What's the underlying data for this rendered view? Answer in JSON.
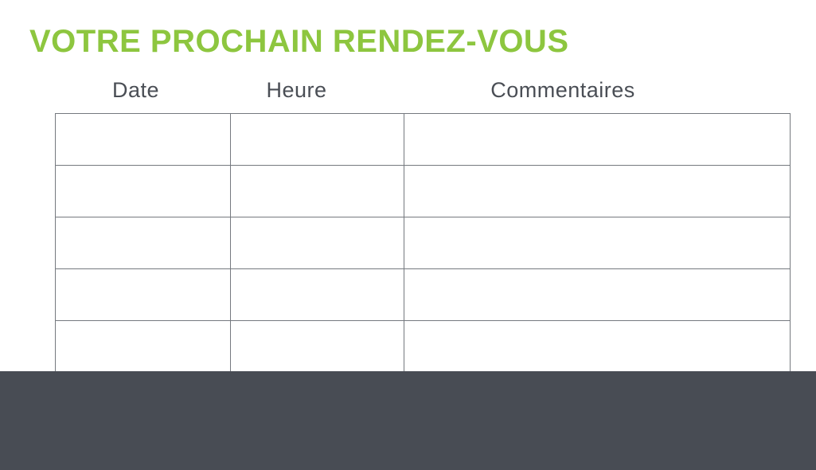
{
  "slide": {
    "title": "VOTRE PROCHAIN RENDEZ-VOUS"
  },
  "table": {
    "headers": [
      "Date",
      "Heure",
      "Commentaires"
    ],
    "rows": [
      [
        "",
        "",
        ""
      ],
      [
        "",
        "",
        ""
      ],
      [
        "",
        "",
        ""
      ],
      [
        "",
        "",
        ""
      ],
      [
        "",
        "",
        ""
      ]
    ]
  },
  "colors": {
    "background": "#FFFFFF",
    "accent_green": "#8DC63F",
    "heading_text": "#4A4E55",
    "table_border": "#75797F",
    "footer_background": "#484C54"
  }
}
